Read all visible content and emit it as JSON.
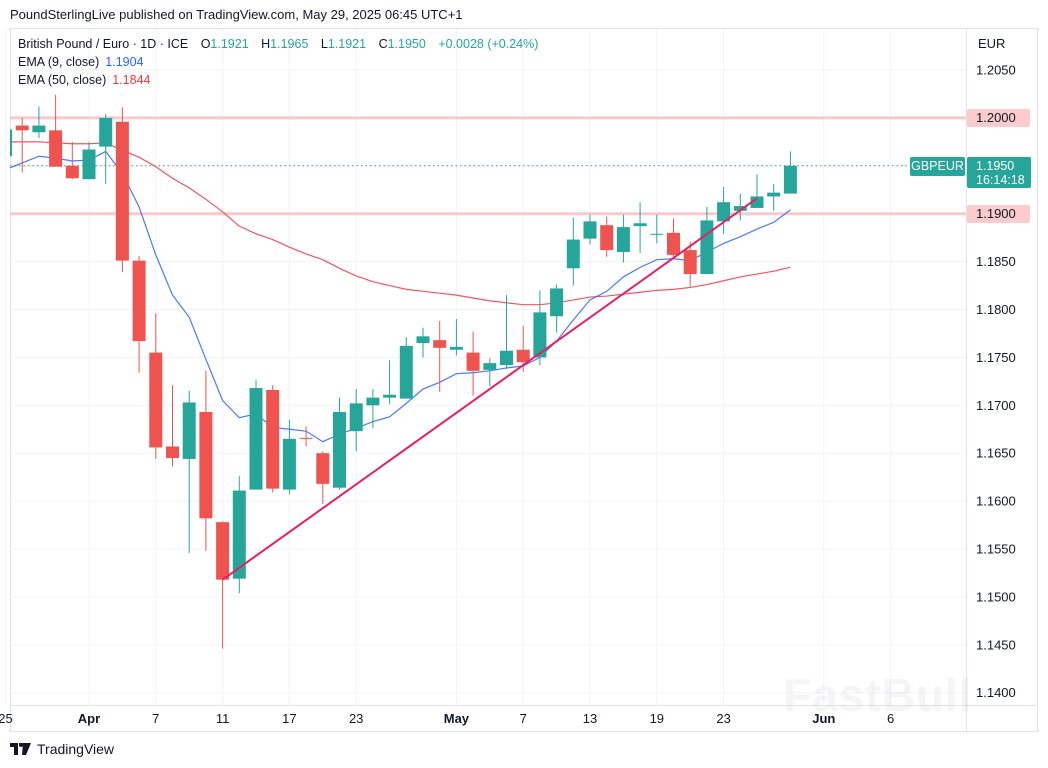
{
  "header": {
    "published": "PoundSterlingLive published on TradingView.com, May 29, 2025 06:45 UTC+1"
  },
  "legend": {
    "symbol": "British Pound / Euro · 1D · ICE",
    "o_label": "O",
    "o": "1.1921",
    "h_label": "H",
    "h": "1.1965",
    "l_label": "L",
    "l": "1.1921",
    "c_label": "C",
    "c": "1.1950",
    "change": "+0.0028 (+0.24%)",
    "ema9_label": "EMA (9, close)",
    "ema9_value": "1.1904",
    "ema50_label": "EMA (50, close)",
    "ema50_value": "1.1844"
  },
  "axis": {
    "currency": "EUR"
  },
  "tags": {
    "symbol": "GBPEUR",
    "last_price": "1.1950",
    "countdown": "16:14:18",
    "level_high": "1.2000",
    "level_low": "1.1900"
  },
  "footer": {
    "brand": "TradingView"
  },
  "watermark": "FastBull",
  "colors": {
    "up": "#26a69a",
    "down": "#ef5350",
    "ema9": "#2962ff",
    "ema50": "#f23645",
    "trendline": "#e91e63",
    "level": "#f8c9cc"
  },
  "chart_data": {
    "type": "candlestick",
    "dates": [
      "2025-03-25",
      "2025-03-26",
      "2025-03-27",
      "2025-03-28",
      "2025-03-31",
      "2025-04-01",
      "2025-04-02",
      "2025-04-03",
      "2025-04-04",
      "2025-04-07",
      "2025-04-08",
      "2025-04-09",
      "2025-04-10",
      "2025-04-11",
      "2025-04-14",
      "2025-04-15",
      "2025-04-16",
      "2025-04-17",
      "2025-04-18",
      "2025-04-21",
      "2025-04-22",
      "2025-04-23",
      "2025-04-24",
      "2025-04-25",
      "2025-04-28",
      "2025-04-29",
      "2025-04-30",
      "2025-05-01",
      "2025-05-02",
      "2025-05-05",
      "2025-05-06",
      "2025-05-07",
      "2025-05-08",
      "2025-05-09",
      "2025-05-12",
      "2025-05-13",
      "2025-05-14",
      "2025-05-15",
      "2025-05-16",
      "2025-05-19",
      "2025-05-20",
      "2025-05-21",
      "2025-05-22",
      "2025-05-23",
      "2025-05-26",
      "2025-05-27",
      "2025-05-28",
      "2025-05-29"
    ],
    "ohlc": [
      [
        1.196,
        1.1993,
        1.1958,
        1.1988
      ],
      [
        1.1992,
        1.2,
        1.1943,
        1.1987
      ],
      [
        1.1985,
        1.2012,
        1.1979,
        1.1992
      ],
      [
        1.1987,
        1.2024,
        1.1949,
        1.1949
      ],
      [
        1.195,
        1.1975,
        1.1936,
        1.1937
      ],
      [
        1.1936,
        1.1975,
        1.1936,
        1.1967
      ],
      [
        1.197,
        1.2004,
        1.1931,
        1.2
      ],
      [
        1.1996,
        1.2011,
        1.1839,
        1.1851
      ],
      [
        1.1851,
        1.1856,
        1.1734,
        1.1767
      ],
      [
        1.1755,
        1.1796,
        1.1644,
        1.1656
      ],
      [
        1.1657,
        1.1721,
        1.1636,
        1.1645
      ],
      [
        1.1644,
        1.1715,
        1.1546,
        1.1703
      ],
      [
        1.1693,
        1.1736,
        1.1548,
        1.1582
      ],
      [
        1.1578,
        1.1579,
        1.1446,
        1.1518
      ],
      [
        1.1519,
        1.1626,
        1.1504,
        1.1611
      ],
      [
        1.1612,
        1.1726,
        1.1612,
        1.1718
      ],
      [
        1.1716,
        1.1721,
        1.1609,
        1.1613
      ],
      [
        1.1612,
        1.1685,
        1.1607,
        1.1665
      ],
      [
        1.1666,
        1.1678,
        1.1657,
        1.1665
      ],
      [
        1.165,
        1.1652,
        1.1597,
        1.1618
      ],
      [
        1.1614,
        1.1708,
        1.1612,
        1.1693
      ],
      [
        1.1673,
        1.1717,
        1.1652,
        1.1702
      ],
      [
        1.17,
        1.1717,
        1.1676,
        1.1708
      ],
      [
        1.1708,
        1.1747,
        1.1701,
        1.1711
      ],
      [
        1.1707,
        1.1771,
        1.1707,
        1.1762
      ],
      [
        1.1765,
        1.1781,
        1.175,
        1.1772
      ],
      [
        1.1768,
        1.1788,
        1.1714,
        1.176
      ],
      [
        1.1758,
        1.179,
        1.1752,
        1.1761
      ],
      [
        1.1755,
        1.1777,
        1.171,
        1.1736
      ],
      [
        1.1737,
        1.1749,
        1.172,
        1.1744
      ],
      [
        1.1742,
        1.1815,
        1.1738,
        1.1757
      ],
      [
        1.1758,
        1.1783,
        1.1735,
        1.1745
      ],
      [
        1.175,
        1.182,
        1.1742,
        1.1797
      ],
      [
        1.1793,
        1.1826,
        1.1776,
        1.1822
      ],
      [
        1.1843,
        1.1896,
        1.1825,
        1.1873
      ],
      [
        1.1874,
        1.1899,
        1.1868,
        1.1892
      ],
      [
        1.1888,
        1.1897,
        1.1855,
        1.1862
      ],
      [
        1.186,
        1.1899,
        1.1849,
        1.1886
      ],
      [
        1.1887,
        1.1912,
        1.1859,
        1.189
      ],
      [
        1.1878,
        1.1899,
        1.1869,
        1.1879
      ],
      [
        1.188,
        1.1895,
        1.1855,
        1.1857
      ],
      [
        1.1862,
        1.1871,
        1.1824,
        1.1837
      ],
      [
        1.1837,
        1.1907,
        1.1837,
        1.1893
      ],
      [
        1.1892,
        1.1928,
        1.1879,
        1.1912
      ],
      [
        1.1903,
        1.1921,
        1.1893,
        1.1908
      ],
      [
        1.1906,
        1.1941,
        1.1906,
        1.1918
      ],
      [
        1.1918,
        1.1931,
        1.1903,
        1.1922
      ],
      [
        1.1921,
        1.1965,
        1.1921,
        1.195
      ]
    ],
    "ema9": [
      1.1946,
      1.1953,
      1.196,
      1.1958,
      1.1955,
      1.1956,
      1.1965,
      1.1942,
      1.1907,
      1.1857,
      1.1815,
      1.1792,
      1.1748,
      1.1705,
      1.1687,
      1.1691,
      1.1677,
      1.1675,
      1.1673,
      1.1662,
      1.167,
      1.1676,
      1.1683,
      1.1688,
      1.1702,
      1.1717,
      1.1724,
      1.1733,
      1.1734,
      1.1736,
      1.1739,
      1.1741,
      1.175,
      1.1767,
      1.1789,
      1.181,
      1.1819,
      1.1834,
      1.1844,
      1.1852,
      1.1853,
      1.1851,
      1.186,
      1.1869,
      1.1876,
      1.1884,
      1.1891,
      1.1904
    ],
    "ema50": [
      1.1975,
      1.1975,
      1.1975,
      1.1974,
      1.1973,
      1.1973,
      1.1974,
      1.1966,
      1.1959,
      1.1949,
      1.1937,
      1.1927,
      1.1915,
      1.1902,
      1.1887,
      1.1879,
      1.1873,
      1.1865,
      1.1858,
      1.1852,
      1.1843,
      1.1835,
      1.1829,
      1.1825,
      1.1821,
      1.1819,
      1.1817,
      1.1815,
      1.1812,
      1.1809,
      1.1807,
      1.1805,
      1.1805,
      1.1807,
      1.181,
      1.1813,
      1.1814,
      1.1816,
      1.1818,
      1.182,
      1.1821,
      1.1823,
      1.1826,
      1.183,
      1.1834,
      1.1837,
      1.184,
      1.1844
    ],
    "trendline": {
      "start": {
        "date": "2025-04-11",
        "price": 1.1518
      },
      "end": {
        "date": "2025-05-27",
        "price": 1.1916
      }
    },
    "horizontal_levels": [
      1.2,
      1.19
    ],
    "last_price": 1.195,
    "x_tick_labels": [
      {
        "date": "2025-03-25",
        "label": "25"
      },
      {
        "date": "2025-04-01",
        "label": "Apr",
        "bold": true
      },
      {
        "date": "2025-04-07",
        "label": "7"
      },
      {
        "date": "2025-04-11",
        "label": "11"
      },
      {
        "date": "2025-04-17",
        "label": "17"
      },
      {
        "date": "2025-04-23",
        "label": "23"
      },
      {
        "date": "2025-05-01",
        "label": "May",
        "bold": true
      },
      {
        "date": "2025-05-07",
        "label": "7"
      },
      {
        "date": "2025-05-13",
        "label": "13"
      },
      {
        "date": "2025-05-19",
        "label": "19"
      },
      {
        "date": "2025-05-23",
        "label": "23"
      },
      {
        "date": "2025-06-02",
        "label": "Jun",
        "bold": true
      },
      {
        "date": "2025-06-06",
        "label": "6"
      }
    ],
    "y_tick_labels": [
      "1.2050",
      "1.2000",
      "1.1950",
      "1.1900",
      "1.1850",
      "1.1800",
      "1.1750",
      "1.1700",
      "1.1650",
      "1.1600",
      "1.1550",
      "1.1500",
      "1.1450",
      "1.1400"
    ],
    "ylim": [
      1.1385,
      1.207
    ],
    "grid": true,
    "legend_position": "top-left"
  }
}
